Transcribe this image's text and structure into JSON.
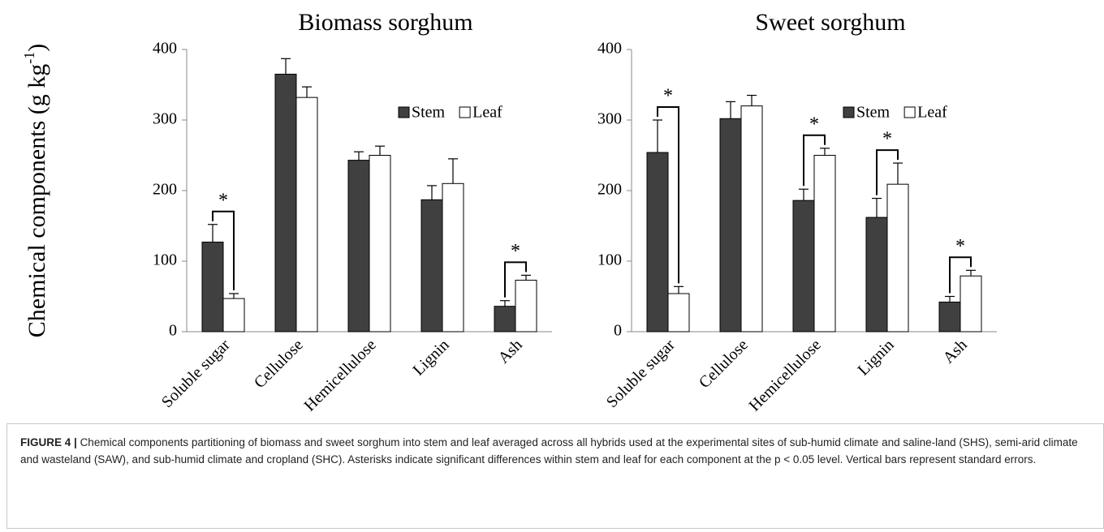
{
  "chart_data": [
    {
      "type": "bar",
      "title": "Biomass sorghum",
      "ylabel_parts": [
        "Chemical components (g kg",
        "-1",
        ")"
      ],
      "categories": [
        "Soluble sugar",
        "Cellulose",
        "Hemicellulose",
        "Lignin",
        "Ash"
      ],
      "series": [
        {
          "name": "Stem",
          "color": "#404040",
          "values": [
            127,
            365,
            243,
            187,
            36
          ],
          "errors": [
            25,
            22,
            12,
            20,
            8
          ]
        },
        {
          "name": "Leaf",
          "color": "#ffffff",
          "values": [
            47,
            332,
            250,
            210,
            73
          ],
          "errors": [
            7,
            15,
            13,
            35,
            7
          ]
        }
      ],
      "significance": [
        "*",
        null,
        null,
        null,
        "*"
      ],
      "ylim": [
        0,
        400
      ],
      "yticks": [
        0,
        100,
        200,
        300,
        400
      ],
      "grid": false,
      "legend": "upper right"
    },
    {
      "type": "bar",
      "title": "Sweet sorghum",
      "categories": [
        "Soluble sugar",
        "Cellulose",
        "Hemicellulose",
        "Lignin",
        "Ash"
      ],
      "series": [
        {
          "name": "Stem",
          "color": "#404040",
          "values": [
            254,
            302,
            186,
            162,
            42
          ],
          "errors": [
            46,
            24,
            16,
            27,
            8
          ]
        },
        {
          "name": "Leaf",
          "color": "#ffffff",
          "values": [
            54,
            320,
            250,
            209,
            79
          ],
          "errors": [
            10,
            15,
            10,
            30,
            8
          ]
        }
      ],
      "significance": [
        "*",
        null,
        "*",
        "*",
        "*"
      ],
      "ylim": [
        0,
        400
      ],
      "yticks": [
        0,
        100,
        200,
        300,
        400
      ],
      "grid": false,
      "legend": "upper right"
    }
  ],
  "caption": {
    "label": "FIGURE 4 |",
    "text": "Chemical components partitioning of biomass and sweet sorghum into stem and leaf averaged across all hybrids used at the experimental sites of sub-humid climate and saline-land (SHS), semi-arid climate and wasteland (SAW), and sub-humid climate and cropland (SHC). Asterisks indicate significant differences within stem and leaf for each component at the p < 0.05 level. Vertical bars represent standard errors."
  }
}
